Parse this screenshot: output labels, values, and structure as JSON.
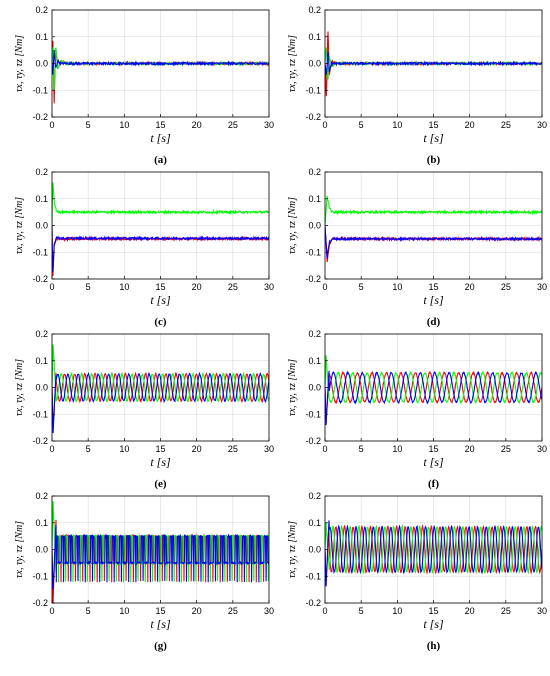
{
  "figure": {
    "panels": [
      "(a)",
      "(b)",
      "(c)",
      "(d)",
      "(e)",
      "(f)",
      "(g)",
      "(h)"
    ]
  },
  "colors": {
    "x": "#ff0000",
    "y": "#00ff00",
    "z": "#0000ff",
    "axis": "#000000",
    "grid": "#d9d9d9"
  },
  "chart_data": [
    {
      "type": "line",
      "panel": "(a)",
      "xlabel": "t [s]",
      "ylabel": "τx, τy, τz [Nm]",
      "xlim": [
        0,
        30
      ],
      "ylim": [
        -0.2,
        0.2
      ],
      "xticks": [
        0,
        5,
        10,
        15,
        20,
        25,
        30
      ],
      "yticks": [
        -0.2,
        -0.1,
        0.0,
        0.1,
        0.2
      ],
      "grid": true,
      "series": [
        {
          "x": [
            0,
            0.1,
            0.3,
            0.5,
            0.8,
            1.2,
            2,
            30
          ],
          "values": [
            0,
            0.11,
            -0.15,
            0.06,
            -0.02,
            0.01,
            0.0,
            0.0
          ]
        },
        {
          "x": [
            0,
            0.1,
            0.3,
            0.5,
            0.8,
            1.2,
            2,
            30
          ],
          "values": [
            0,
            0.08,
            -0.1,
            0.07,
            -0.02,
            0.01,
            0.0,
            0.0
          ]
        },
        {
          "x": [
            0,
            0.1,
            0.3,
            0.5,
            0.8,
            1.2,
            2,
            30
          ],
          "values": [
            0,
            -0.05,
            0.05,
            -0.02,
            0.01,
            0.0,
            0.0,
            0.0
          ]
        }
      ]
    },
    {
      "type": "line",
      "panel": "(b)",
      "xlabel": "t [s]",
      "ylabel": "τx, τy, τz [Nm]",
      "xlim": [
        0,
        30
      ],
      "ylim": [
        -0.2,
        0.2
      ],
      "xticks": [
        0,
        5,
        10,
        15,
        20,
        25,
        30
      ],
      "yticks": [
        -0.2,
        -0.1,
        0.0,
        0.1,
        0.2
      ],
      "grid": true,
      "series": [
        {
          "x": [
            0,
            0.2,
            0.4,
            0.6,
            0.9,
            1.5,
            30
          ],
          "values": [
            0,
            -0.14,
            0.14,
            -0.04,
            0.01,
            0.0,
            0.0
          ]
        },
        {
          "x": [
            0,
            0.2,
            0.4,
            0.6,
            0.9,
            1.5,
            30
          ],
          "values": [
            0,
            0.07,
            -0.07,
            0.03,
            -0.01,
            0.0,
            0.0
          ]
        },
        {
          "x": [
            0,
            0.2,
            0.4,
            0.6,
            0.9,
            1.5,
            30
          ],
          "values": [
            0,
            -0.05,
            0.05,
            -0.03,
            0.0,
            0.0,
            0.0
          ]
        }
      ]
    },
    {
      "type": "line",
      "panel": "(c)",
      "xlabel": "t [s]",
      "ylabel": "τx, τy, τz [Nm]",
      "xlim": [
        0,
        30
      ],
      "ylim": [
        -0.2,
        0.2
      ],
      "xticks": [
        0,
        5,
        10,
        15,
        20,
        25,
        30
      ],
      "yticks": [
        -0.2,
        -0.1,
        0.0,
        0.1,
        0.2
      ],
      "grid": true,
      "series": [
        {
          "x": [
            0,
            0.1,
            0.3,
            0.6,
            1.0,
            30
          ],
          "values": [
            0,
            -0.2,
            -0.08,
            -0.05,
            -0.05,
            -0.05
          ]
        },
        {
          "x": [
            0,
            0.1,
            0.3,
            0.6,
            1.0,
            30
          ],
          "values": [
            0,
            0.17,
            0.09,
            0.055,
            0.05,
            0.05
          ]
        },
        {
          "x": [
            0,
            0.1,
            0.3,
            0.6,
            1.0,
            30
          ],
          "values": [
            0,
            -0.18,
            -0.07,
            -0.045,
            -0.048,
            -0.048
          ]
        }
      ]
    },
    {
      "type": "line",
      "panel": "(d)",
      "xlabel": "t [s]",
      "ylabel": "τx, τy, τz [Nm]",
      "xlim": [
        0,
        30
      ],
      "ylim": [
        -0.2,
        0.2
      ],
      "xticks": [
        0,
        5,
        10,
        15,
        20,
        25,
        30
      ],
      "yticks": [
        -0.2,
        -0.1,
        0.0,
        0.1,
        0.2
      ],
      "grid": true,
      "series": [
        {
          "x": [
            0,
            0.3,
            0.6,
            1.0,
            1.5,
            30
          ],
          "values": [
            0,
            -0.14,
            -0.07,
            -0.05,
            -0.05,
            -0.05
          ]
        },
        {
          "x": [
            0,
            0.3,
            0.6,
            1.0,
            1.5,
            30
          ],
          "values": [
            0,
            0.11,
            0.07,
            0.05,
            0.05,
            0.05
          ]
        },
        {
          "x": [
            0,
            0.3,
            0.6,
            1.0,
            1.5,
            30
          ],
          "values": [
            0,
            -0.12,
            -0.06,
            -0.05,
            -0.05,
            -0.05
          ]
        }
      ]
    },
    {
      "type": "line",
      "panel": "(e)",
      "xlabel": "t [s]",
      "ylabel": "τx, τy, τz [Nm]",
      "xlim": [
        0,
        30
      ],
      "ylim": [
        -0.2,
        0.2
      ],
      "xticks": [
        0,
        5,
        10,
        15,
        20,
        25,
        30
      ],
      "yticks": [
        -0.2,
        -0.1,
        0.0,
        0.1,
        0.2
      ],
      "grid": true,
      "oscillation": {
        "amplitude": 0.05,
        "period": 1.4
      },
      "series": [
        {
          "transient": [
            -0.16,
            0.08
          ],
          "phase_deg": 0
        },
        {
          "transient": [
            0.16,
            -0.05
          ],
          "phase_deg": 120
        },
        {
          "transient": [
            -0.17,
            0.07
          ],
          "phase_deg": 240
        }
      ]
    },
    {
      "type": "line",
      "panel": "(f)",
      "xlabel": "t [s]",
      "ylabel": "τx, τy, τz [Nm]",
      "xlim": [
        0,
        30
      ],
      "ylim": [
        -0.2,
        0.2
      ],
      "xticks": [
        0,
        5,
        10,
        15,
        20,
        25,
        30
      ],
      "yticks": [
        -0.2,
        -0.1,
        0.0,
        0.1,
        0.2
      ],
      "grid": true,
      "oscillation": {
        "amplitude": 0.055,
        "period": 2.0
      },
      "series": [
        {
          "transient": [
            -0.13,
            0.06
          ],
          "phase_deg": 0
        },
        {
          "transient": [
            0.12,
            -0.05
          ],
          "phase_deg": 120
        },
        {
          "transient": [
            -0.14,
            0.09
          ],
          "phase_deg": 240
        }
      ]
    },
    {
      "type": "line",
      "panel": "(g)",
      "xlabel": "t [s]",
      "ylabel": "τx, τy, τz [Nm]",
      "xlim": [
        0,
        30
      ],
      "ylim": [
        -0.2,
        0.2
      ],
      "xticks": [
        0,
        5,
        10,
        15,
        20,
        25,
        30
      ],
      "yticks": [
        -0.2,
        -0.1,
        0.0,
        0.1,
        0.2
      ],
      "grid": true,
      "oscillation": {
        "amplitude": 0.05,
        "period": 1.0,
        "spike": 0.12
      },
      "series": [
        {
          "transient": [
            -0.2,
            0.15
          ],
          "phase_deg": 0
        },
        {
          "transient": [
            0.18,
            -0.12
          ],
          "phase_deg": 120
        },
        {
          "transient": [
            -0.15,
            0.12
          ],
          "phase_deg": 240
        }
      ]
    },
    {
      "type": "line",
      "panel": "(h)",
      "xlabel": "t [s]",
      "ylabel": "τx, τy, τz [Nm]",
      "xlim": [
        0,
        30
      ],
      "ylim": [
        -0.2,
        0.2
      ],
      "xticks": [
        0,
        5,
        10,
        15,
        20,
        25,
        30
      ],
      "yticks": [
        -0.2,
        -0.1,
        0.0,
        0.1,
        0.2
      ],
      "grid": true,
      "oscillation": {
        "amplitude": 0.085,
        "period": 1.2
      },
      "series": [
        {
          "transient": [
            -0.12,
            0.1
          ],
          "phase_deg": 0
        },
        {
          "transient": [
            0.1,
            -0.08
          ],
          "phase_deg": 120
        },
        {
          "transient": [
            -0.14,
            0.14
          ],
          "phase_deg": 240
        }
      ]
    }
  ]
}
